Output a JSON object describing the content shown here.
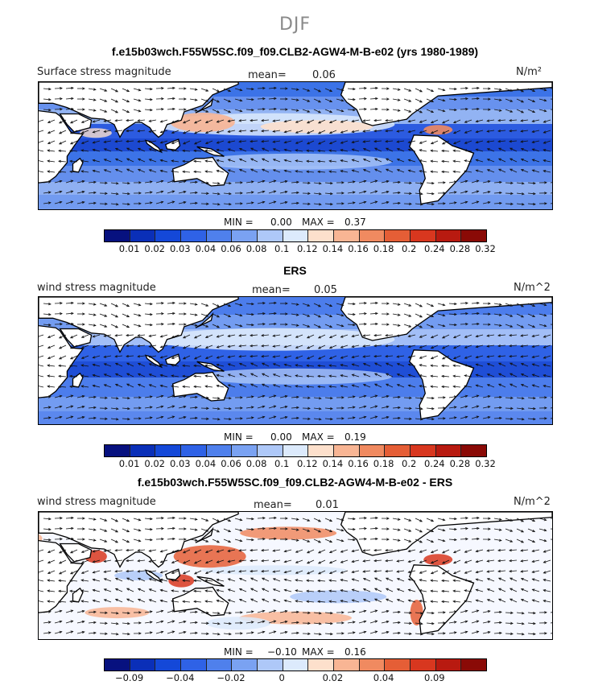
{
  "title": "DJF",
  "panels": [
    {
      "title": "f.e15b03wch.F55W5SC.f09_f09.CLB2-AGW4-M-B-e02 (yrs 1980-1989)",
      "left_label": "Surface stress magnitude",
      "mean_label": "mean=",
      "mean_value": "0.06",
      "units": "N/m²",
      "min_label": "MIN =",
      "min_value": "0.00",
      "max_label": "MAX =",
      "max_value": "0.37",
      "scale": "abs"
    },
    {
      "title": "ERS",
      "left_label": "wind stress magnitude",
      "mean_label": "mean=",
      "mean_value": "0.05",
      "units": "N/m^2",
      "min_label": "MIN =",
      "min_value": "0.00",
      "max_label": "MAX =",
      "max_value": "0.19",
      "scale": "abs"
    },
    {
      "title": "f.e15b03wch.F55W5SC.f09_f09.CLB2-AGW4-M-B-e02 - ERS",
      "left_label": "wind stress magnitude",
      "mean_label": "mean=",
      "mean_value": "0.01",
      "units": "N/m^2",
      "min_label": "MIN =",
      "min_value": "−0.10",
      "max_label": "MAX =",
      "max_value": "0.16",
      "scale": "diff"
    }
  ],
  "colorbars": {
    "abs": {
      "colors": [
        "#07117f",
        "#0a2fb8",
        "#1448d8",
        "#2f62e6",
        "#4f80ec",
        "#7aa2f2",
        "#aec8f8",
        "#dceafc",
        "#fde0cc",
        "#f8b594",
        "#f08a60",
        "#e55e36",
        "#d8371f",
        "#b81a10",
        "#8a0a06"
      ],
      "labels": [
        "0.01",
        "0.02",
        "0.03",
        "0.04",
        "0.06",
        "0.08",
        "0.1",
        "0.12",
        "0.14",
        "0.16",
        "0.18",
        "0.2",
        "0.24",
        "0.28",
        "0.32"
      ]
    },
    "diff": {
      "colors": [
        "#07117f",
        "#0a2fb8",
        "#1448d8",
        "#2f62e6",
        "#4f80ec",
        "#7aa2f2",
        "#aec8f8",
        "#dceafc",
        "#fde0cc",
        "#f8b594",
        "#f08a60",
        "#e55e36",
        "#d8371f",
        "#b81a10",
        "#8a0a06"
      ],
      "labels": [
        "−0.09",
        "−0.04",
        "−0.02",
        "0",
        "0.02",
        "0.04",
        "0.09"
      ]
    }
  }
}
